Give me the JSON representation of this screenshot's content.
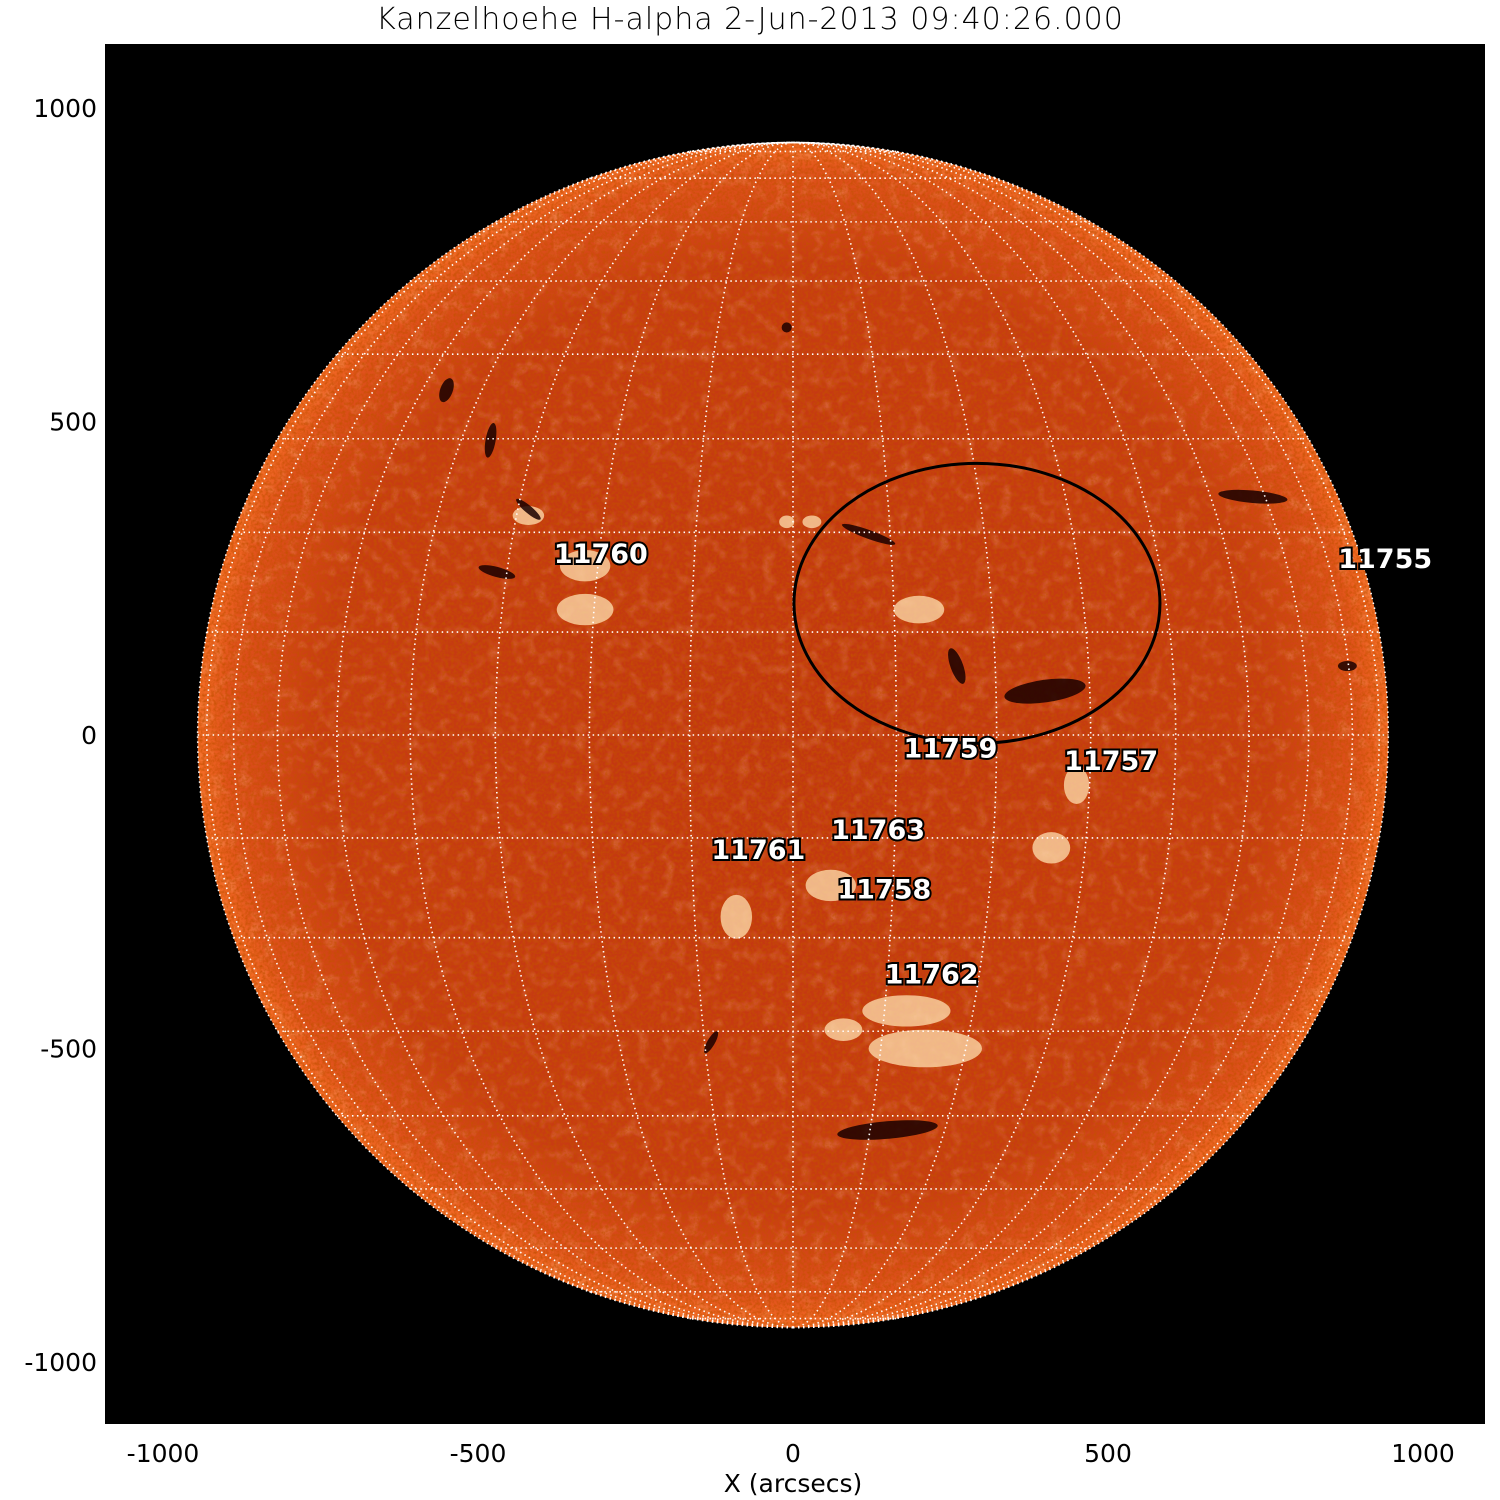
{
  "title": "Kanzelhoehe H-alpha  2-Jun-2013 09:40:26.000",
  "x_axis": {
    "label": "X (arcsecs)",
    "ticks": [
      "-1000",
      "-500",
      "0",
      "500",
      "1000"
    ],
    "range": [
      -1092,
      1098
    ]
  },
  "y_axis": {
    "label": "",
    "ticks": [
      "1000",
      "500",
      "0",
      "-500",
      "-1000"
    ],
    "range": [
      -1102,
      1099
    ]
  },
  "image": {
    "instrument": "Kanzelhoehe H-alpha",
    "solar_radius_arcsec": 945,
    "grid_spacing_deg": 10
  },
  "active_regions": [
    "11760",
    "11755",
    "11759",
    "11757",
    "11763",
    "11761",
    "11758",
    "11762"
  ],
  "colors": {
    "background": "#000000",
    "sun_base": "#c83c12",
    "sun_limb": "#f26a24",
    "grid": "#ffffff",
    "label_fill": "#ffffff",
    "label_outline": "#000000",
    "highlight_circle": "#000000"
  }
}
